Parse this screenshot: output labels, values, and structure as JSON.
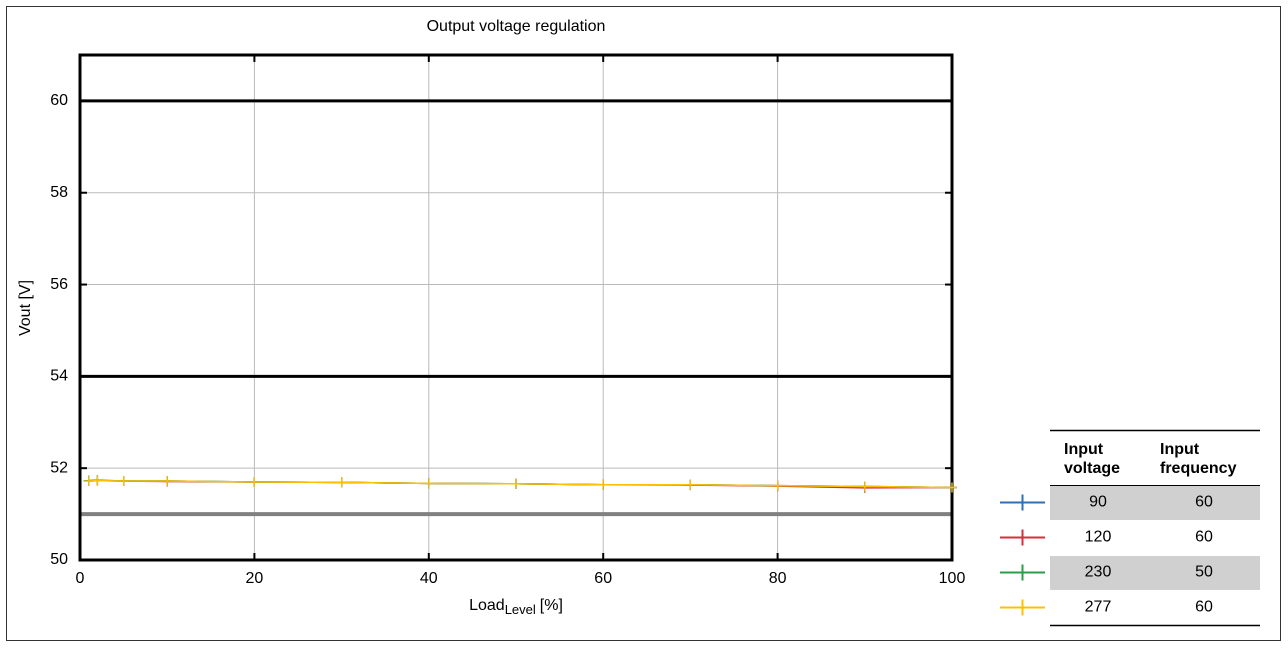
{
  "chart_data": {
    "type": "line",
    "title": "Output voltage regulation",
    "xlabel": "Load",
    "xlabel_sub": "Level",
    "xlabel_unit": "[%]",
    "ylabel": "Vout [V]",
    "x": [
      1,
      2,
      5,
      10,
      20,
      30,
      40,
      50,
      60,
      70,
      80,
      90,
      100
    ],
    "series": [
      {
        "name": "90",
        "frequency": "60",
        "color": "#2f6fb5",
        "values": [
          51.73,
          51.73,
          51.72,
          51.72,
          51.7,
          51.69,
          51.67,
          51.66,
          51.64,
          51.64,
          51.62,
          51.6,
          51.58
        ]
      },
      {
        "name": "120",
        "frequency": "60",
        "color": "#d62e3c",
        "values": [
          51.72,
          51.73,
          51.72,
          51.71,
          51.7,
          51.69,
          51.67,
          51.66,
          51.64,
          51.63,
          51.61,
          51.57,
          51.58
        ]
      },
      {
        "name": "230",
        "frequency": "50",
        "color": "#2a9d4a",
        "values": [
          51.73,
          51.74,
          51.72,
          51.72,
          51.7,
          51.69,
          51.67,
          51.66,
          51.64,
          51.64,
          51.62,
          51.6,
          51.58
        ]
      },
      {
        "name": "277",
        "frequency": "60",
        "color": "#ffc000",
        "values": [
          51.72,
          51.73,
          51.72,
          51.72,
          51.7,
          51.69,
          51.67,
          51.66,
          51.64,
          51.64,
          51.62,
          51.6,
          51.58
        ]
      }
    ],
    "reference_lines": [
      {
        "value": 60,
        "color": "#000000"
      },
      {
        "value": 54,
        "color": "#000000"
      },
      {
        "value": 51,
        "color": "#808080"
      }
    ],
    "legend_headers": [
      "Input voltage",
      "Input frequency"
    ],
    "xlim": [
      0,
      100
    ],
    "xticks": [
      0,
      20,
      40,
      60,
      80,
      100
    ],
    "ylim": [
      50,
      61
    ],
    "yticks": [
      50,
      52,
      54,
      56,
      58,
      60
    ],
    "grid": true
  }
}
